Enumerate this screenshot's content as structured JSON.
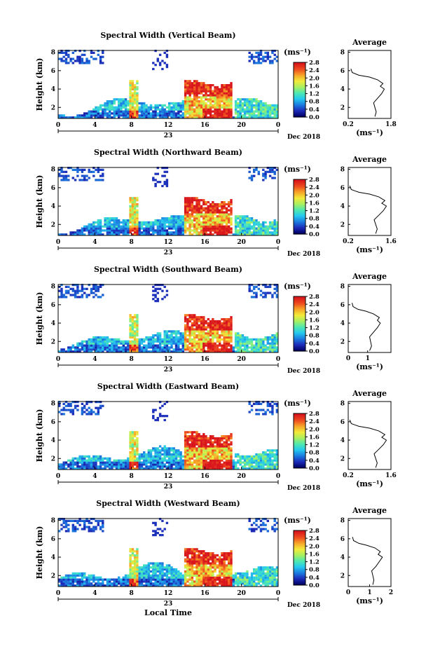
{
  "figure": {
    "xlabel": "Local Time",
    "date_label": "Dec 2018",
    "day_label": "23",
    "colorbar_unit": "(ms⁻¹)",
    "colorbar_ticks": [
      "0.0",
      "0.4",
      "0.8",
      "1.2",
      "1.6",
      "2.0",
      "2.4",
      "2.8"
    ],
    "colorbar_colors": [
      "#000060",
      "#1c2ab8",
      "#1b7be0",
      "#25c8ee",
      "#4ee8b0",
      "#a8f060",
      "#f2ea3a",
      "#f7a628",
      "#ee4b1e",
      "#d8161c"
    ],
    "avg_title": "Average",
    "avg_xlabel": "(ms⁻¹)"
  },
  "chart_data": [
    {
      "type": "heatmap",
      "title": "Spectral Width (Vertical Beam)",
      "ylabel": "Height (km)",
      "x_ticks": [
        "0",
        "4",
        "8",
        "12",
        "16",
        "20",
        "0"
      ],
      "y_ticks": [
        "2",
        "4",
        "6",
        "8"
      ],
      "xlim": [
        0,
        24
      ],
      "ylim": [
        0.8,
        8.2
      ],
      "colorbar_range": [
        0.0,
        2.8
      ],
      "average_profile": {
        "x_ticks": [
          "0.2",
          "1.8"
        ],
        "xlim": [
          0.2,
          1.8
        ],
        "y_ticks": [
          "2",
          "4",
          "6",
          "8"
        ],
        "ylim": [
          0.8,
          8.2
        ],
        "height": [
          1.0,
          1.5,
          2.0,
          2.5,
          3.0,
          3.5,
          4.0,
          4.3,
          4.6,
          5.0,
          5.3,
          5.5,
          5.8,
          6.2
        ],
        "width": [
          1.2,
          1.25,
          1.2,
          1.15,
          1.3,
          1.45,
          1.55,
          1.4,
          1.5,
          1.3,
          1.0,
          0.6,
          0.35,
          0.3
        ]
      }
    },
    {
      "type": "heatmap",
      "title": "Spectral Width (Northward Beam)",
      "ylabel": "Height (km)",
      "x_ticks": [
        "0",
        "4",
        "8",
        "12",
        "16",
        "20",
        "0"
      ],
      "y_ticks": [
        "2",
        "4",
        "6",
        "8"
      ],
      "xlim": [
        0,
        24
      ],
      "ylim": [
        0.8,
        8.2
      ],
      "colorbar_range": [
        0.0,
        2.8
      ],
      "average_profile": {
        "x_ticks": [
          "0.2",
          "1.6"
        ],
        "xlim": [
          0.2,
          1.6
        ],
        "y_ticks": [
          "2",
          "4",
          "6",
          "8"
        ],
        "ylim": [
          0.8,
          8.2
        ],
        "height": [
          1.0,
          1.5,
          2.0,
          2.5,
          3.0,
          3.5,
          4.0,
          4.3,
          4.6,
          5.0,
          5.3,
          5.5,
          5.8,
          6.2
        ],
        "width": [
          1.1,
          1.15,
          1.1,
          1.05,
          1.2,
          1.35,
          1.45,
          1.3,
          1.4,
          1.2,
          0.9,
          0.55,
          0.3,
          0.25
        ]
      }
    },
    {
      "type": "heatmap",
      "title": "Spectral Width (Southward Beam)",
      "ylabel": "Height (km)",
      "x_ticks": [
        "0",
        "4",
        "8",
        "12",
        "16",
        "20",
        "0"
      ],
      "y_ticks": [
        "2",
        "4",
        "6",
        "8"
      ],
      "xlim": [
        0,
        24
      ],
      "ylim": [
        0.8,
        8.2
      ],
      "colorbar_range": [
        0.0,
        2.8
      ],
      "average_profile": {
        "x_ticks": [
          "0",
          "1"
        ],
        "xlim": [
          0,
          2.2
        ],
        "y_ticks": [
          "2",
          "4",
          "6",
          "8"
        ],
        "ylim": [
          0.8,
          8.2
        ],
        "height": [
          1.0,
          1.5,
          2.0,
          2.5,
          3.0,
          3.5,
          4.0,
          4.3,
          4.6,
          5.0,
          5.3,
          5.5,
          5.8,
          6.2
        ],
        "width": [
          1.1,
          1.2,
          1.15,
          1.1,
          1.3,
          1.5,
          1.65,
          1.5,
          1.6,
          1.3,
          0.9,
          0.5,
          0.25,
          0.2
        ]
      }
    },
    {
      "type": "heatmap",
      "title": "Spectral Width (Eastward Beam)",
      "ylabel": "Height (km)",
      "x_ticks": [
        "0",
        "4",
        "8",
        "12",
        "16",
        "20",
        "0"
      ],
      "y_ticks": [
        "2",
        "4",
        "6",
        "8"
      ],
      "xlim": [
        0,
        24
      ],
      "ylim": [
        0.8,
        8.2
      ],
      "colorbar_range": [
        0.0,
        2.8
      ],
      "average_profile": {
        "x_ticks": [
          "0.2",
          "1.6"
        ],
        "xlim": [
          0.2,
          1.6
        ],
        "y_ticks": [
          "2",
          "4",
          "6",
          "8"
        ],
        "ylim": [
          0.8,
          8.2
        ],
        "height": [
          1.0,
          1.5,
          2.0,
          2.5,
          3.0,
          3.5,
          4.0,
          4.3,
          4.6,
          5.0,
          5.3,
          5.5,
          5.8,
          6.2
        ],
        "width": [
          1.1,
          1.15,
          1.1,
          1.05,
          1.2,
          1.35,
          1.45,
          1.3,
          1.4,
          1.2,
          0.9,
          0.55,
          0.3,
          0.25
        ]
      }
    },
    {
      "type": "heatmap",
      "title": "Spectral Width (Westward Beam)",
      "ylabel": "Height (km)",
      "x_ticks": [
        "0",
        "4",
        "8",
        "12",
        "16",
        "20",
        "0"
      ],
      "y_ticks": [
        "2",
        "4",
        "6",
        "8"
      ],
      "xlim": [
        0,
        24
      ],
      "ylim": [
        0.8,
        8.2
      ],
      "colorbar_range": [
        0.0,
        2.8
      ],
      "average_profile": {
        "x_ticks": [
          "0",
          "1",
          "2"
        ],
        "xlim": [
          0,
          2.0
        ],
        "y_ticks": [
          "2",
          "4",
          "6",
          "8"
        ],
        "ylim": [
          0.8,
          8.2
        ],
        "height": [
          1.0,
          1.5,
          2.0,
          2.5,
          3.0,
          3.5,
          4.0,
          4.3,
          4.6,
          5.0,
          5.3,
          5.5,
          5.8,
          6.2
        ],
        "width": [
          1.15,
          1.2,
          1.15,
          1.1,
          1.3,
          1.45,
          1.6,
          1.4,
          1.5,
          1.25,
          0.85,
          0.5,
          0.25,
          0.2
        ]
      }
    }
  ]
}
